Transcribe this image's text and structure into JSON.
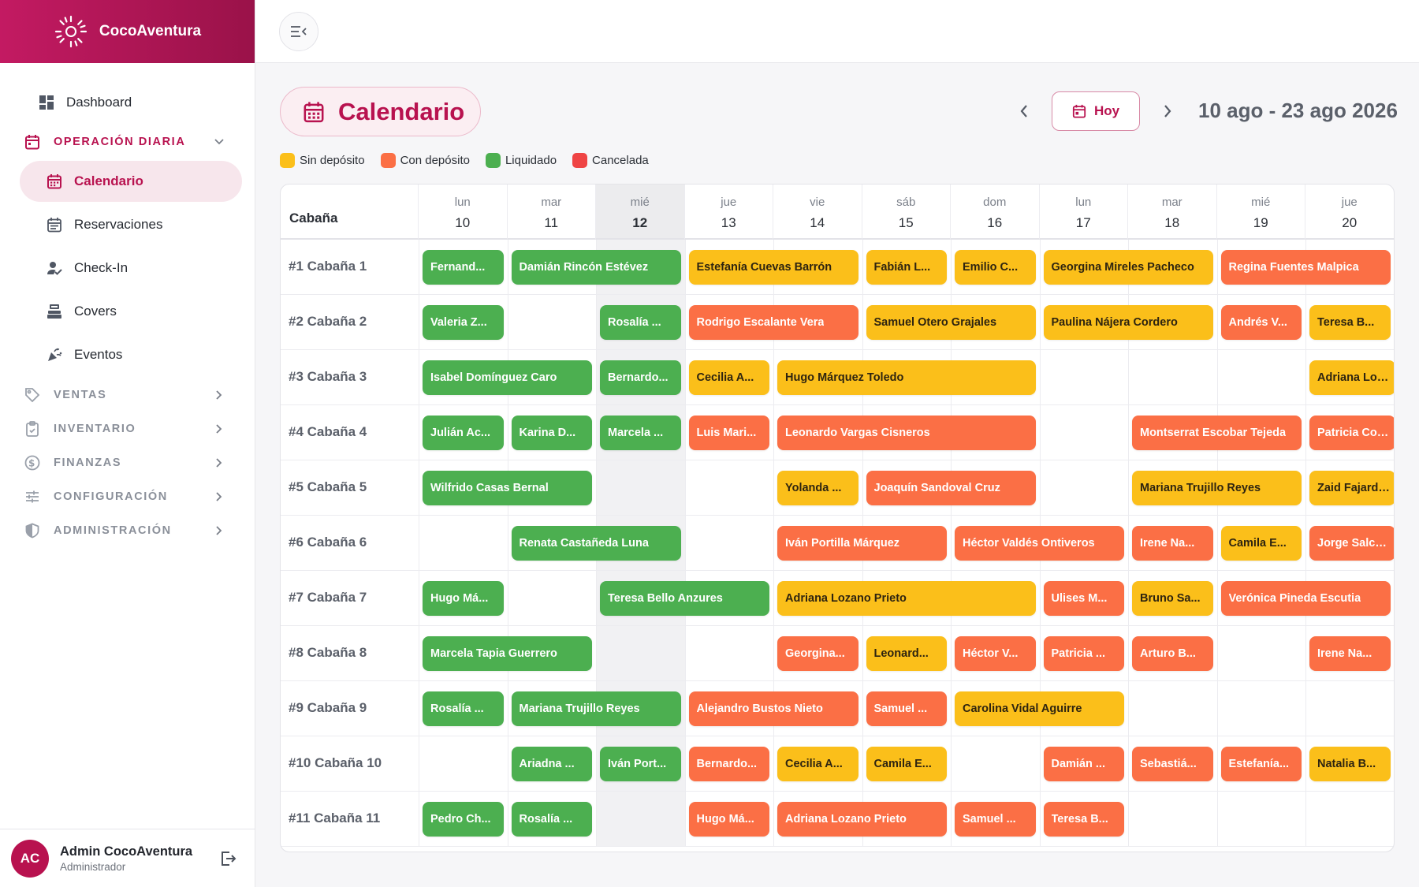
{
  "brand": {
    "name": "CocoAventura"
  },
  "nav": {
    "dashboard": "Dashboard",
    "operacion_diaria": "OPERACIÓN DIARIA",
    "calendario": "Calendario",
    "reservaciones": "Reservaciones",
    "checkin": "Check-In",
    "covers": "Covers",
    "eventos": "Eventos",
    "ventas": "VENTAS",
    "inventario": "INVENTARIO",
    "finanzas": "FINANZAS",
    "configuracion": "CONFIGURACIÓN",
    "administracion": "ADMINISTRACIÓN"
  },
  "user": {
    "initials": "AC",
    "name": "Admin CocoAventura",
    "role": "Administrador"
  },
  "header": {
    "title": "Calendario",
    "today_label": "Hoy",
    "range": "10 ago - 23 ago 2026"
  },
  "colors": {
    "sin": "#fbbf1a",
    "con": "#fb6f45",
    "liq": "#4caf50",
    "can": "#ef4444",
    "accent": "#b8124f"
  },
  "legend": [
    {
      "label": "Sin depósito",
      "status": "sin"
    },
    {
      "label": "Con depósito",
      "status": "con"
    },
    {
      "label": "Liquidado",
      "status": "liq"
    },
    {
      "label": "Cancelada",
      "status": "can"
    }
  ],
  "calendar": {
    "cabana_header": "Cabaña",
    "today_index": 2,
    "days": [
      {
        "dow": "lun",
        "num": "10"
      },
      {
        "dow": "mar",
        "num": "11"
      },
      {
        "dow": "mié",
        "num": "12"
      },
      {
        "dow": "jue",
        "num": "13"
      },
      {
        "dow": "vie",
        "num": "14"
      },
      {
        "dow": "sáb",
        "num": "15"
      },
      {
        "dow": "dom",
        "num": "16"
      },
      {
        "dow": "lun",
        "num": "17"
      },
      {
        "dow": "mar",
        "num": "18"
      },
      {
        "dow": "mié",
        "num": "19"
      },
      {
        "dow": "jue",
        "num": "20"
      }
    ],
    "rows": [
      {
        "label": "#1 Cabaña 1",
        "res": [
          {
            "text": "Fernand...",
            "start": 0,
            "span": 1,
            "status": "liq"
          },
          {
            "text": "Damián Rincón Estévez",
            "start": 1,
            "span": 2,
            "status": "liq"
          },
          {
            "text": "Estefanía Cuevas Barrón",
            "start": 3,
            "span": 2,
            "status": "sin"
          },
          {
            "text": "Fabián L...",
            "start": 5,
            "span": 1,
            "status": "sin"
          },
          {
            "text": "Emilio C...",
            "start": 6,
            "span": 1,
            "status": "sin"
          },
          {
            "text": "Georgina Mireles Pacheco",
            "start": 7,
            "span": 2,
            "status": "sin"
          },
          {
            "text": "Regina Fuentes Malpica",
            "start": 9,
            "span": 2,
            "status": "con"
          }
        ]
      },
      {
        "label": "#2 Cabaña 2",
        "res": [
          {
            "text": "Valeria Z...",
            "start": 0,
            "span": 1,
            "status": "liq"
          },
          {
            "text": "Rosalía ...",
            "start": 2,
            "span": 1,
            "status": "liq"
          },
          {
            "text": "Rodrigo Escalante Vera",
            "start": 3,
            "span": 2,
            "status": "con"
          },
          {
            "text": "Samuel Otero Grajales",
            "start": 5,
            "span": 2,
            "status": "sin"
          },
          {
            "text": "Paulina Nájera Cordero",
            "start": 7,
            "span": 2,
            "status": "sin"
          },
          {
            "text": "Andrés V...",
            "start": 9,
            "span": 1,
            "status": "con"
          },
          {
            "text": "Teresa B...",
            "start": 10,
            "span": 1,
            "status": "sin"
          }
        ]
      },
      {
        "label": "#3 Cabaña 3",
        "res": [
          {
            "text": "Isabel Domínguez Caro",
            "start": 0,
            "span": 2,
            "status": "liq"
          },
          {
            "text": "Bernardo...",
            "start": 2,
            "span": 1,
            "status": "liq"
          },
          {
            "text": "Cecilia A...",
            "start": 3,
            "span": 1,
            "status": "sin"
          },
          {
            "text": "Hugo Márquez Toledo",
            "start": 4,
            "span": 3,
            "status": "sin"
          },
          {
            "text": "Adriana Lozano",
            "start": 10,
            "span": 1.2,
            "status": "sin"
          }
        ]
      },
      {
        "label": "#4 Cabaña 4",
        "res": [
          {
            "text": "Julián Ac...",
            "start": 0,
            "span": 1,
            "status": "liq"
          },
          {
            "text": "Karina D...",
            "start": 1,
            "span": 1,
            "status": "liq"
          },
          {
            "text": "Marcela ...",
            "start": 2,
            "span": 1,
            "status": "liq"
          },
          {
            "text": "Luis Mari...",
            "start": 3,
            "span": 1,
            "status": "con"
          },
          {
            "text": "Leonardo Vargas Cisneros",
            "start": 4,
            "span": 3,
            "status": "con"
          },
          {
            "text": "Montserrat Escobar Tejeda",
            "start": 8,
            "span": 2,
            "status": "con"
          },
          {
            "text": "Patricia Cordero",
            "start": 10,
            "span": 1.2,
            "status": "con"
          }
        ]
      },
      {
        "label": "#5 Cabaña 5",
        "res": [
          {
            "text": "Wilfrido Casas Bernal",
            "start": 0,
            "span": 2,
            "status": "liq"
          },
          {
            "text": "Yolanda ...",
            "start": 4,
            "span": 1,
            "status": "sin"
          },
          {
            "text": "Joaquín Sandoval Cruz",
            "start": 5,
            "span": 2,
            "status": "con"
          },
          {
            "text": "Mariana Trujillo Reyes",
            "start": 8,
            "span": 2,
            "status": "sin"
          },
          {
            "text": "Zaid Fajardo N",
            "start": 10,
            "span": 1.2,
            "status": "sin"
          }
        ]
      },
      {
        "label": "#6 Cabaña 6",
        "res": [
          {
            "text": "Renata Castañeda Luna",
            "start": 1,
            "span": 2,
            "status": "liq"
          },
          {
            "text": "Iván Portilla Márquez",
            "start": 4,
            "span": 2,
            "status": "con"
          },
          {
            "text": "Héctor Valdés Ontiveros",
            "start": 6,
            "span": 2,
            "status": "con"
          },
          {
            "text": "Irene Na...",
            "start": 8,
            "span": 1,
            "status": "con"
          },
          {
            "text": "Camila E...",
            "start": 9,
            "span": 1,
            "status": "sin"
          },
          {
            "text": "Jorge Salcedo",
            "start": 10,
            "span": 1.2,
            "status": "con"
          }
        ]
      },
      {
        "label": "#7 Cabaña 7",
        "res": [
          {
            "text": "Hugo Má...",
            "start": 0,
            "span": 1,
            "status": "liq"
          },
          {
            "text": "Teresa Bello Anzures",
            "start": 2,
            "span": 2,
            "status": "liq"
          },
          {
            "text": "Adriana Lozano Prieto",
            "start": 4,
            "span": 3,
            "status": "sin"
          },
          {
            "text": "Ulises M...",
            "start": 7,
            "span": 1,
            "status": "con"
          },
          {
            "text": "Bruno Sa...",
            "start": 8,
            "span": 1,
            "status": "sin"
          },
          {
            "text": "Verónica Pineda Escutia",
            "start": 9,
            "span": 2,
            "status": "con"
          }
        ]
      },
      {
        "label": "#8 Cabaña 8",
        "res": [
          {
            "text": "Marcela Tapia Guerrero",
            "start": 0,
            "span": 2,
            "status": "liq"
          },
          {
            "text": "Georgina...",
            "start": 4,
            "span": 1,
            "status": "con"
          },
          {
            "text": "Leonard...",
            "start": 5,
            "span": 1,
            "status": "sin"
          },
          {
            "text": "Héctor V...",
            "start": 6,
            "span": 1,
            "status": "con"
          },
          {
            "text": "Patricia ...",
            "start": 7,
            "span": 1,
            "status": "con"
          },
          {
            "text": "Arturo B...",
            "start": 8,
            "span": 1,
            "status": "con"
          },
          {
            "text": "Irene Na...",
            "start": 10,
            "span": 1,
            "status": "con"
          }
        ]
      },
      {
        "label": "#9 Cabaña 9",
        "res": [
          {
            "text": "Rosalía ...",
            "start": 0,
            "span": 1,
            "status": "liq"
          },
          {
            "text": "Mariana Trujillo Reyes",
            "start": 1,
            "span": 2,
            "status": "liq"
          },
          {
            "text": "Alejandro Bustos Nieto",
            "start": 3,
            "span": 2,
            "status": "con"
          },
          {
            "text": "Samuel ...",
            "start": 5,
            "span": 1,
            "status": "con"
          },
          {
            "text": "Carolina Vidal Aguirre",
            "start": 6,
            "span": 2,
            "status": "sin"
          }
        ]
      },
      {
        "label": "#10 Cabaña 10",
        "res": [
          {
            "text": "Ariadna ...",
            "start": 1,
            "span": 1,
            "status": "liq"
          },
          {
            "text": "Iván Port...",
            "start": 2,
            "span": 1,
            "status": "liq"
          },
          {
            "text": "Bernardo...",
            "start": 3,
            "span": 1,
            "status": "con"
          },
          {
            "text": "Cecilia A...",
            "start": 4,
            "span": 1,
            "status": "sin"
          },
          {
            "text": "Camila E...",
            "start": 5,
            "span": 1,
            "status": "sin"
          },
          {
            "text": "Damián ...",
            "start": 7,
            "span": 1,
            "status": "con"
          },
          {
            "text": "Sebastiá...",
            "start": 8,
            "span": 1,
            "status": "con"
          },
          {
            "text": "Estefanía...",
            "start": 9,
            "span": 1,
            "status": "con"
          },
          {
            "text": "Natalia B...",
            "start": 10,
            "span": 1,
            "status": "sin"
          }
        ]
      },
      {
        "label": "#11 Cabaña 11",
        "res": [
          {
            "text": "Pedro Ch...",
            "start": 0,
            "span": 1,
            "status": "liq"
          },
          {
            "text": "Rosalía ...",
            "start": 1,
            "span": 1,
            "status": "liq"
          },
          {
            "text": "Hugo Má...",
            "start": 3,
            "span": 1,
            "status": "con"
          },
          {
            "text": "Adriana Lozano Prieto",
            "start": 4,
            "span": 2,
            "status": "con"
          },
          {
            "text": "Samuel ...",
            "start": 6,
            "span": 1,
            "status": "con"
          },
          {
            "text": "Teresa B...",
            "start": 7,
            "span": 1,
            "status": "con"
          }
        ]
      }
    ]
  }
}
